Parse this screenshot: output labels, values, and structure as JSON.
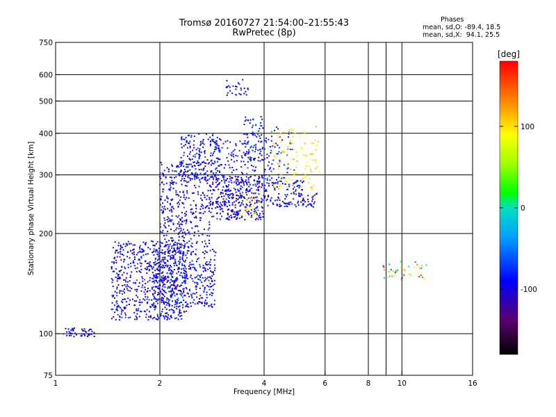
{
  "header": {
    "title_line1": "Tromsø 20160727 21:54:00–21:55:43",
    "title_line2": "RwPretec (8p)"
  },
  "stats": {
    "heading": "Phases",
    "line_o": "mean, sd,O: -89.4, 18.5",
    "line_x": "mean, sd,X:  94.1, 25.5"
  },
  "colorbar": {
    "unit_label": "[deg]",
    "range": [
      -180,
      180
    ],
    "tick_labels": [
      "100",
      "0",
      "-100"
    ],
    "tick_values": [
      100,
      0,
      -100
    ]
  },
  "chart_data": {
    "type": "scatter",
    "title": "Tromsø 20160727 21:54:00–21:55:43 RwPretec (8p)",
    "xlabel": "Frequency [MHz]",
    "ylabel": "Stationary phase Virtual Height [km]",
    "xscale": "log",
    "yscale": "log",
    "xlim": [
      1,
      16
    ],
    "ylim": [
      75,
      750
    ],
    "grid": true,
    "x_ticks": [
      1,
      2,
      4,
      6,
      8,
      10,
      16
    ],
    "x_tick_labels": [
      "1",
      "2",
      "4",
      "6",
      "8",
      "10",
      "16"
    ],
    "x_minor_ticks": [
      9
    ],
    "y_ticks": [
      75,
      100,
      200,
      300,
      400,
      500,
      600,
      750
    ],
    "y_tick_labels": [
      "75",
      "100",
      "200",
      "300",
      "400",
      "500",
      "600",
      "750"
    ],
    "color_encodes": "phase [deg]",
    "clusters": [
      {
        "x_range": [
          1.05,
          1.3
        ],
        "y_range": [
          98,
          104
        ],
        "phase_mean": -95,
        "phase_sd": 10,
        "count": 45
      },
      {
        "x_range": [
          1.45,
          2.4
        ],
        "y_range": [
          110,
          190
        ],
        "phase_mean": -95,
        "phase_sd": 15,
        "count": 650
      },
      {
        "x_range": [
          1.9,
          2.9
        ],
        "y_range": [
          120,
          180
        ],
        "phase_mean": -90,
        "phase_sd": 18,
        "count": 400
      },
      {
        "x_range": [
          2.0,
          2.8
        ],
        "y_range": [
          180,
          330
        ],
        "phase_mean": -95,
        "phase_sd": 15,
        "count": 380
      },
      {
        "x_range": [
          2.3,
          3.0
        ],
        "y_range": [
          290,
          400
        ],
        "phase_mean": -90,
        "phase_sd": 15,
        "count": 170
      },
      {
        "x_range": [
          2.8,
          4.0
        ],
        "y_range": [
          220,
          300
        ],
        "phase_mean": -95,
        "phase_sd": 18,
        "count": 380
      },
      {
        "x_range": [
          2.8,
          3.8
        ],
        "y_range": [
          300,
          380
        ],
        "phase_mean": -90,
        "phase_sd": 15,
        "count": 100
      },
      {
        "x_range": [
          3.5,
          4.0
        ],
        "y_range": [
          330,
          450
        ],
        "phase_mean": -90,
        "phase_sd": 15,
        "count": 70
      },
      {
        "x_range": [
          3.1,
          3.6
        ],
        "y_range": [
          520,
          580
        ],
        "phase_mean": -95,
        "phase_sd": 15,
        "count": 30
      },
      {
        "x_range": [
          4.0,
          5.2
        ],
        "y_range": [
          240,
          290
        ],
        "phase_mean": -90,
        "phase_sd": 15,
        "count": 120
      },
      {
        "x_range": [
          4.0,
          4.9
        ],
        "y_range": [
          290,
          420
        ],
        "phase_mean": -80,
        "phase_sd": 20,
        "count": 70
      },
      {
        "x_range": [
          4.2,
          5.8
        ],
        "y_range": [
          270,
          420
        ],
        "phase_mean": 100,
        "phase_sd": 15,
        "count": 110
      },
      {
        "x_range": [
          5.0,
          5.7
        ],
        "y_range": [
          240,
          265
        ],
        "phase_mean": -100,
        "phase_sd": 10,
        "count": 30
      },
      {
        "x_range": [
          3.4,
          3.9
        ],
        "y_range": [
          225,
          265
        ],
        "phase_mean": 95,
        "phase_sd": 15,
        "count": 30
      },
      {
        "x_range": [
          8.8,
          11.8
        ],
        "y_range": [
          145,
          165
        ],
        "phase_mean": 60,
        "phase_sd": 60,
        "count": 40
      }
    ]
  }
}
